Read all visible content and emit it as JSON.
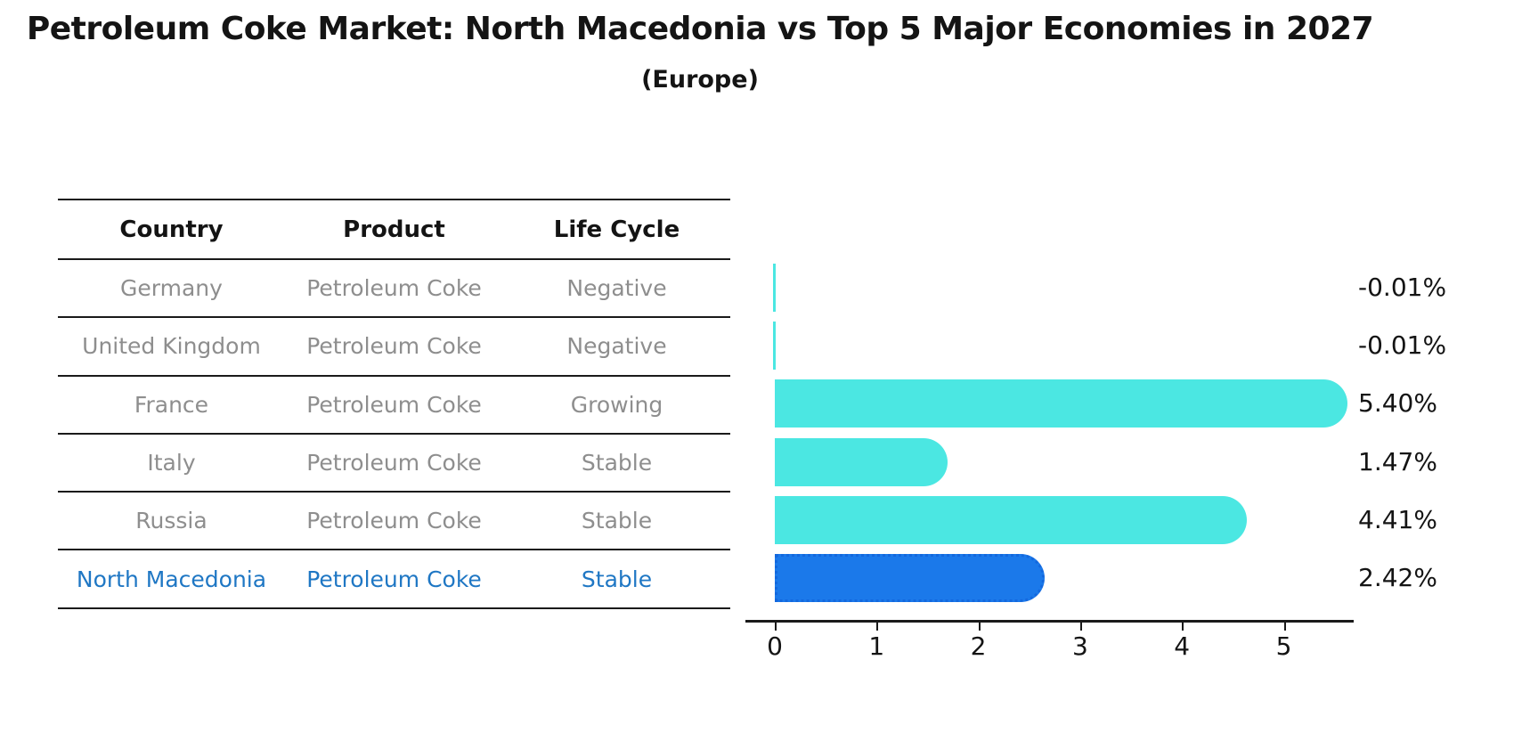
{
  "title": "Petroleum Coke Market: North Macedonia vs Top 5 Major Economies in 2027",
  "subtitle": "(Europe)",
  "colors": {
    "bar_default": "#4be7e2",
    "bar_highlight": "#1b79ea",
    "bar_highlight_border": "#1368de",
    "highlight_text": "#1f77c4",
    "muted_text": "#8e8e8e",
    "text": "#141414"
  },
  "table": {
    "headers": [
      "Country",
      "Product",
      "Life Cycle"
    ],
    "rows": [
      {
        "country": "Germany",
        "product": "Petroleum Coke",
        "life_cycle": "Negative",
        "highlight": false
      },
      {
        "country": "United Kingdom",
        "product": "Petroleum Coke",
        "life_cycle": "Negative",
        "highlight": false
      },
      {
        "country": "France",
        "product": "Petroleum Coke",
        "life_cycle": "Growing",
        "highlight": false
      },
      {
        "country": "Italy",
        "product": "Petroleum Coke",
        "life_cycle": "Stable",
        "highlight": false
      },
      {
        "country": "Russia",
        "product": "Petroleum Coke",
        "life_cycle": "Stable",
        "highlight": false
      },
      {
        "country": "North Macedonia",
        "product": "Petroleum Coke",
        "life_cycle": "Stable",
        "highlight": true
      }
    ]
  },
  "chart_data": {
    "type": "bar",
    "orientation": "horizontal",
    "title": "Petroleum Coke Market: North Macedonia vs Top 5 Major Economies in 2027 (Europe)",
    "categories": [
      "Germany",
      "United Kingdom",
      "France",
      "Italy",
      "Russia",
      "North Macedonia"
    ],
    "values": [
      -0.01,
      -0.01,
      5.4,
      1.47,
      4.41,
      2.42
    ],
    "value_labels": [
      "-0.01%",
      "-0.01%",
      "5.40%",
      "1.47%",
      "4.41%",
      "2.42%"
    ],
    "highlight_index": 5,
    "xticks": [
      0,
      1,
      2,
      3,
      4,
      5
    ],
    "xlim": [
      -0.29,
      5.68
    ],
    "grid": false,
    "legend": false,
    "xlabel": "",
    "ylabel": ""
  }
}
